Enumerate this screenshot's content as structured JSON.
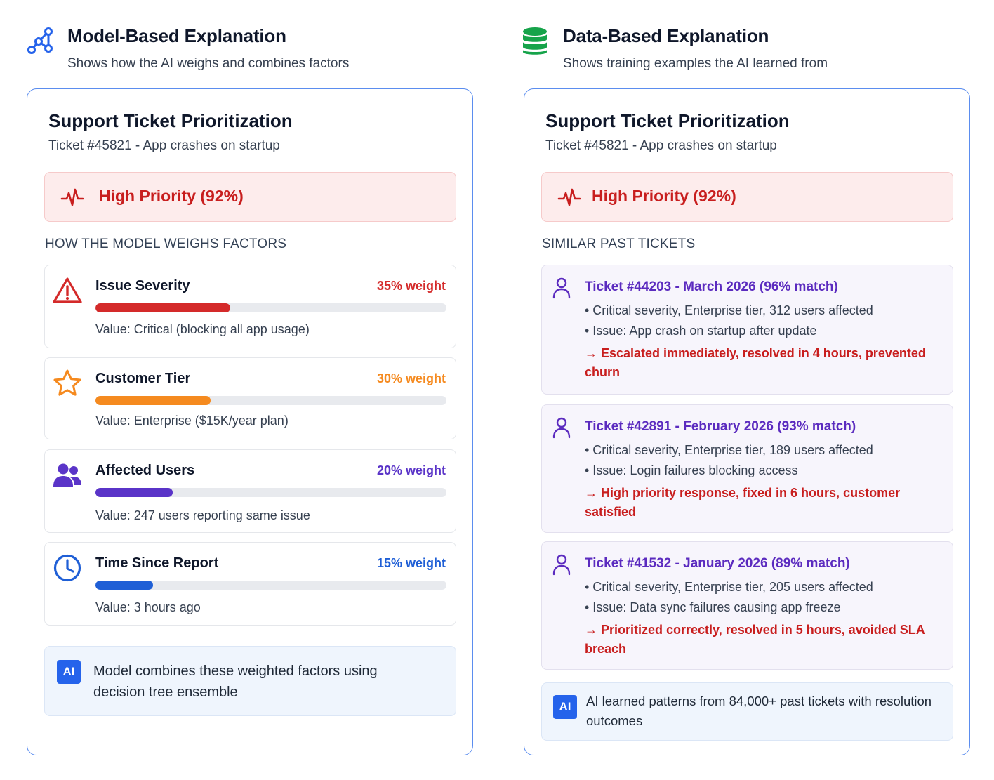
{
  "left": {
    "header": {
      "title": "Model-Based Explanation",
      "subtitle": "Shows how the AI weighs and combines factors",
      "icon": "network-graph-icon"
    },
    "panel": {
      "title": "Support Ticket Prioritization",
      "subtitle": "Ticket #45821 - App crashes on startup",
      "priority": "High Priority (92%)",
      "section_label": "HOW THE MODEL WEIGHS FACTORS",
      "factors": [
        {
          "name": "Issue Severity",
          "weight_label": "35% weight",
          "weight": 0.35,
          "value": "Value: Critical (blocking all app usage)",
          "color": "#d42a2a",
          "icon": "warning-triangle-icon"
        },
        {
          "name": "Customer Tier",
          "weight_label": "30% weight",
          "weight": 0.3,
          "value": "Value: Enterprise ($15K/year plan)",
          "color": "#f58a1f",
          "icon": "star-icon"
        },
        {
          "name": "Affected Users",
          "weight_label": "20% weight",
          "weight": 0.2,
          "value": "Value: 247 users reporting same issue",
          "color": "#5a34c8",
          "icon": "users-icon"
        },
        {
          "name": "Time Since Report",
          "weight_label": "15% weight",
          "weight": 0.15,
          "value": "Value: 3 hours ago",
          "color": "#1f5fd6",
          "icon": "clock-icon"
        }
      ],
      "ai_badge": "AI",
      "ai_note": "Model combines these weighted factors using decision tree ensemble"
    }
  },
  "right": {
    "header": {
      "title": "Data-Based Explanation",
      "subtitle": "Shows training examples the AI learned from",
      "icon": "database-icon"
    },
    "panel": {
      "title": "Support Ticket Prioritization",
      "subtitle": "Ticket #45821 - App crashes on startup",
      "priority": "High Priority (92%)",
      "section_label": "SIMILAR PAST TICKETS",
      "tickets": [
        {
          "title": "Ticket #44203 - March 2026 (96% match)",
          "line1": "• Critical severity, Enterprise tier, 312 users affected",
          "line2": "• Issue: App crash on startup after update",
          "outcome": "→ Escalated immediately, resolved in 4 hours, prevented churn"
        },
        {
          "title": "Ticket #42891 - February 2026 (93% match)",
          "line1": "• Critical severity, Enterprise tier, 189 users affected",
          "line2": "• Issue: Login failures blocking access",
          "outcome": "→ High priority response, fixed in 6 hours, customer satisfied"
        },
        {
          "title": "Ticket #41532 - January 2026 (89% match)",
          "line1": "• Critical severity, Enterprise tier, 205 users affected",
          "line2": "• Issue: Data sync failures causing app freeze",
          "outcome": "→ Prioritized correctly, resolved in 5 hours, avoided SLA breach"
        }
      ],
      "ai_badge": "AI",
      "ai_note": "AI learned patterns from 84,000+ past tickets with resolution outcomes"
    }
  },
  "colors": {
    "panel_border": "#5b8def",
    "priority_bg": "#fdecec",
    "priority_text": "#c81e1e",
    "ticket_title": "#5b2bbf",
    "ai_badge": "#2563eb"
  }
}
